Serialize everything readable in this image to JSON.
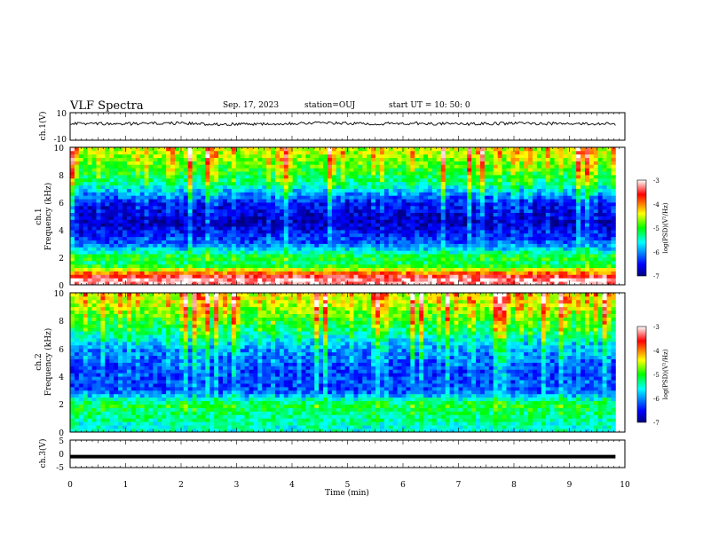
{
  "header": {
    "title": "VLF Spectra",
    "date": "Sep. 17, 2023",
    "station": "station=OUJ",
    "start_ut": "start  UT  =   10: 50: 0"
  },
  "chart_data": [
    {
      "type": "line",
      "title": "",
      "ylabel": "ch.1(V)",
      "ylim": [
        -10,
        10
      ],
      "y_ticks": [
        "10",
        "-10"
      ],
      "series": [
        {
          "values": [
            2.1,
            1.8,
            2.4,
            1.6,
            2.0,
            2.6,
            1.9,
            2.2,
            1.7,
            2.3,
            2.0,
            1.8
          ]
        }
      ],
      "color": "#000000"
    },
    {
      "type": "heatmap",
      "ylabel": "ch.1",
      "ylabel2": "Frequency (kHz)",
      "ylim": [
        0,
        10
      ],
      "y_ticks": [
        "0",
        "2",
        "4",
        "6",
        "8",
        "10"
      ],
      "colorbar": {
        "label": "log(PSD)(V²/Hz)",
        "range": [
          -7,
          -3
        ],
        "ticks": [
          "-3",
          "-4",
          "-5",
          "-6",
          "-7"
        ]
      },
      "band_profile_log_psd": [
        {
          "freq_khz": 0.5,
          "value": -3.2
        },
        {
          "freq_khz": 1.5,
          "value": -5.3
        },
        {
          "freq_khz": 2.0,
          "value": -5.0
        },
        {
          "freq_khz": 3.0,
          "value": -6.2
        },
        {
          "freq_khz": 4.5,
          "value": -6.8
        },
        {
          "freq_khz": 6.0,
          "value": -6.5
        },
        {
          "freq_khz": 7.5,
          "value": -5.3
        },
        {
          "freq_khz": 9.5,
          "value": -4.6
        }
      ]
    },
    {
      "type": "heatmap",
      "ylabel": "ch.2",
      "ylabel2": "Frequency (kHz)",
      "ylim": [
        0,
        10
      ],
      "y_ticks": [
        "0",
        "2",
        "4",
        "6",
        "8",
        "10"
      ],
      "colorbar": {
        "label": "log(PSD)(V²/Hz)",
        "range": [
          -7,
          -3
        ],
        "ticks": [
          "-3",
          "-4",
          "-5",
          "-6",
          "-7"
        ]
      },
      "band_profile_log_psd": [
        {
          "freq_khz": 0.5,
          "value": -5.5
        },
        {
          "freq_khz": 2.0,
          "value": -5.1
        },
        {
          "freq_khz": 3.0,
          "value": -6.3
        },
        {
          "freq_khz": 4.5,
          "value": -6.3
        },
        {
          "freq_khz": 6.0,
          "value": -6.0
        },
        {
          "freq_khz": 7.5,
          "value": -5.2
        },
        {
          "freq_khz": 9.5,
          "value": -4.5
        }
      ]
    },
    {
      "type": "line",
      "ylabel": "ch.3(V)",
      "ylim": [
        -5,
        5
      ],
      "y_ticks": [
        "5",
        "0",
        "-5"
      ],
      "series": [
        {
          "values": [
            -1.0,
            -1.0,
            -1.0,
            -1.0,
            -1.0,
            -1.0,
            -1.0,
            -1.0,
            -1.0,
            -1.0,
            -1.0
          ]
        }
      ],
      "color": "#000000"
    }
  ],
  "x_axis": {
    "label": "Time  (min)",
    "ticks": [
      "0",
      "1",
      "2",
      "3",
      "4",
      "5",
      "6",
      "7",
      "8",
      "9",
      "10"
    ],
    "xlim": [
      0,
      10
    ],
    "data_end_min": 9.83
  }
}
